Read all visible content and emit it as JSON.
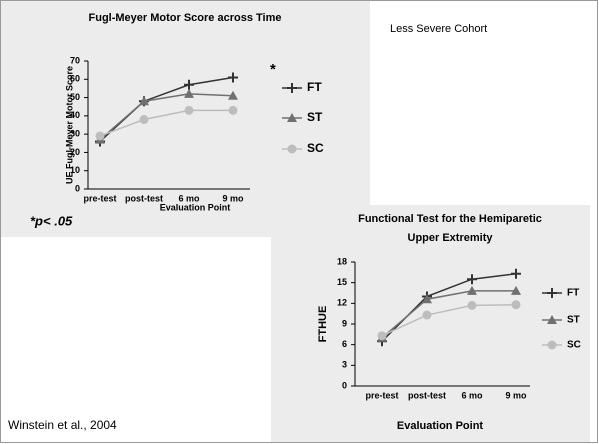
{
  "slide": {
    "heading": "Less Severe Cohort",
    "citation": "Winstein et al., 2004"
  },
  "chart_data": [
    {
      "type": "line",
      "title": [
        "Fugl-Meyer Motor Score across Time"
      ],
      "y_label": "UE Fugl-Meyer Motor Score",
      "x_label": "Evaluation Point",
      "categories": [
        "pre-test",
        "post-test",
        "6 mo",
        "9 mo"
      ],
      "series": [
        {
          "name": "FT",
          "color": "#333333",
          "marker": "plus",
          "values": [
            26,
            48,
            57,
            61
          ]
        },
        {
          "name": "ST",
          "color": "#707070",
          "marker": "triangle",
          "values": [
            27,
            48,
            52,
            51
          ]
        },
        {
          "name": "SC",
          "color": "#bdbdbd",
          "marker": "circle",
          "values": [
            29,
            38,
            43,
            43
          ]
        }
      ],
      "ylim": [
        0,
        70
      ],
      "yticks": [
        0,
        10,
        20,
        30,
        40,
        50,
        60,
        70
      ],
      "annotations": [
        "*",
        "*p< .05"
      ]
    },
    {
      "type": "line",
      "title": [
        "Functional Test for the Hemiparetic",
        "Upper Extremity"
      ],
      "y_label": "FTHUE",
      "x_label": "Evaluation Point",
      "categories": [
        "pre-test",
        "post-test",
        "6 mo",
        "9 mo"
      ],
      "series": [
        {
          "name": "FT",
          "color": "#333333",
          "marker": "plus",
          "values": [
            6.5,
            13,
            15.5,
            16.3
          ]
        },
        {
          "name": "ST",
          "color": "#707070",
          "marker": "triangle",
          "values": [
            7,
            12.6,
            13.8,
            13.8
          ]
        },
        {
          "name": "SC",
          "color": "#bdbdbd",
          "marker": "circle",
          "values": [
            7.3,
            10.3,
            11.7,
            11.8
          ]
        }
      ],
      "ylim": [
        0,
        18
      ],
      "yticks": [
        0,
        3,
        6,
        9,
        12,
        15,
        18
      ]
    }
  ]
}
